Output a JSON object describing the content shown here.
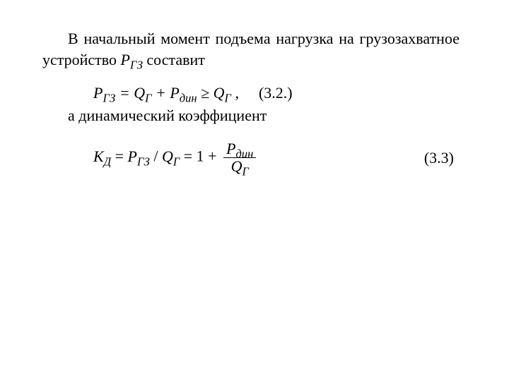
{
  "colors": {
    "text": "#000000",
    "background": "#ffffff",
    "rule": "#000000"
  },
  "typography": {
    "family": "Times New Roman",
    "body_size_pt": 16,
    "line_height": 1.35
  },
  "intro_text_parts": {
    "prefix": "В начальный момент подъема нагрузка на грузозахватное устройство  ",
    "symbol_main": "P",
    "symbol_sub": "ГЗ",
    "suffix": " составит"
  },
  "equation_3_2": {
    "lhs_main": "P",
    "lhs_sub": "ГЗ",
    "eq": " = ",
    "q_main": "Q",
    "q_sub": "Г",
    "plus": " + ",
    "pdin_main": "P",
    "pdin_sub": "дин",
    "geq": " ≥ ",
    "q2_main": "Q",
    "q2_sub": "Г",
    "tail": " ,",
    "number": "(3.2.)"
  },
  "line_after_3_2": "а динамический коэффициент",
  "equation_3_3": {
    "k_main": "К",
    "k_sub": "Д",
    "mid1": " = ",
    "p_main": "P",
    "p_sub": "ГЗ",
    "slash": " / ",
    "q_main": "Q",
    "q_sub": "Г",
    "mid2": "  = 1 + ",
    "frac_num_main": "P",
    "frac_num_sub": "дин",
    "frac_den_main": "Q",
    "frac_den_sub": "Г",
    "number": "(3.3)"
  }
}
